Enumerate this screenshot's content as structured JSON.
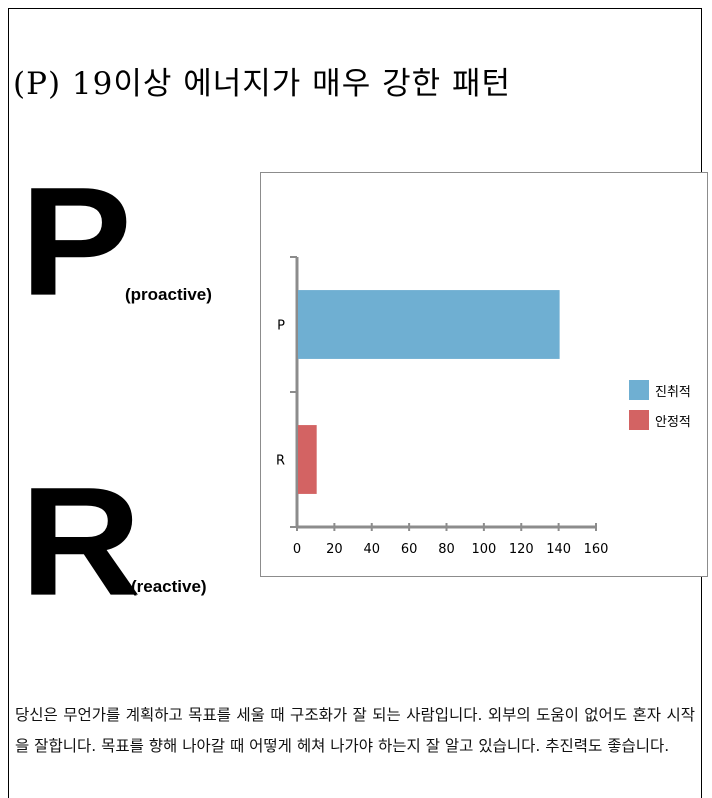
{
  "title": "(P) 19이상 에너지가 매우 강한 패턴",
  "big_letters": {
    "p": "P",
    "p_sub": "(proactive)",
    "r": "R",
    "r_sub": "(reactive)"
  },
  "chart_data": {
    "type": "bar",
    "orientation": "horizontal",
    "categories": [
      "P",
      "R"
    ],
    "series": [
      {
        "name": "진취적",
        "values": [
          140,
          0
        ],
        "color": "#6fafd2"
      },
      {
        "name": "안정적",
        "values": [
          0,
          10
        ],
        "color": "#d36363"
      }
    ],
    "xlim": [
      0,
      160
    ],
    "xticks": [
      0,
      20,
      40,
      60,
      80,
      100,
      120,
      140,
      160
    ],
    "grid": false,
    "legend_position": "right"
  },
  "description": "당신은 무언가를 계획하고 목표를 세울 때 구조화가 잘 되는 사람입니다. 외부의 도움이 없어도 혼자 시작을 잘합니다. 목표를 향해 나아갈 때 어떻게 헤쳐 나가야 하는지 잘 알고 있습니다. 추진력도 좋습니다."
}
